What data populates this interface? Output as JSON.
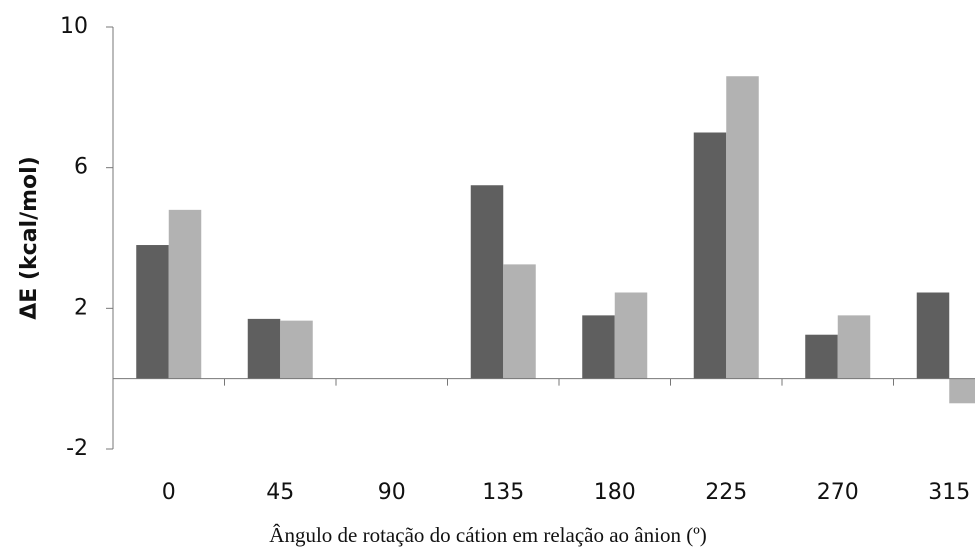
{
  "chart_data": {
    "type": "bar",
    "x_label": "Ângulo de rotação do cátion em relação ao ânion (º)",
    "y_label": "ΔE (kcal/mol)",
    "categories": [
      "0",
      "45",
      "90",
      "135",
      "180",
      "225",
      "270",
      "315"
    ],
    "series": [
      {
        "color": "#5f5f5f",
        "values": [
          3.8,
          1.7,
          0,
          5.5,
          1.8,
          7.0,
          1.25,
          2.45
        ]
      },
      {
        "color": "#b2b2b2",
        "values": [
          4.8,
          1.65,
          0,
          3.25,
          2.45,
          8.6,
          1.8,
          -0.7
        ]
      }
    ],
    "ylim": [
      -2,
      10
    ],
    "yticks": [
      -2,
      2,
      6,
      10
    ],
    "grid": false
  }
}
